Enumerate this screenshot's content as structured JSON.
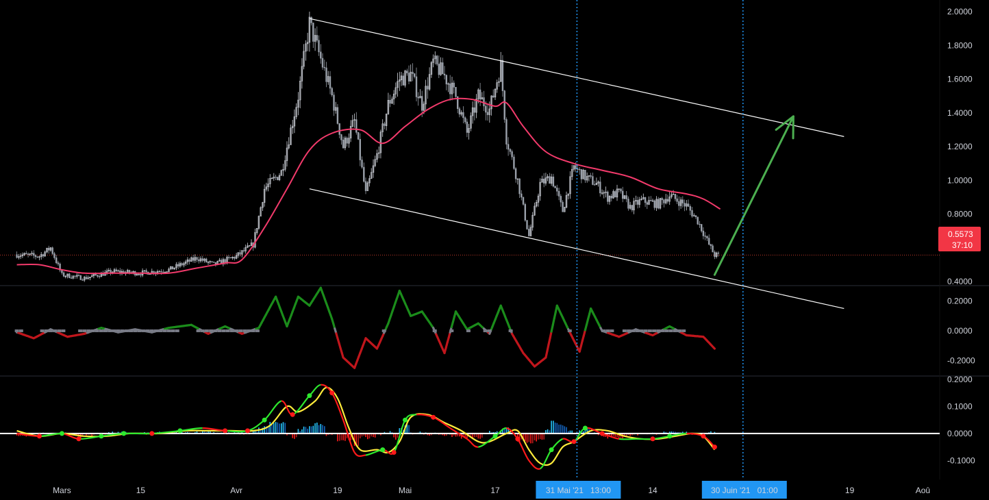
{
  "chart_data": [
    {
      "type": "candlestick",
      "panel": "price",
      "y_axis": {
        "ticks": [
          "2.0000",
          "1.8000",
          "1.6000",
          "1.4000",
          "1.2000",
          "1.0000",
          "0.8000",
          "0.6000",
          "0.4000"
        ],
        "tick_values": [
          2.0,
          1.8,
          1.6,
          1.4,
          1.2,
          1.0,
          0.8,
          0.6,
          0.4
        ],
        "ylim": [
          0.38,
          2.07
        ]
      },
      "last_price": {
        "value": 0.5573,
        "label": "0.5573",
        "countdown": "37:10",
        "color": "#f23645"
      },
      "moving_average": {
        "color": "#f23a6b",
        "points": [
          [
            "2021-02-21",
            0.5
          ],
          [
            "2021-02-25",
            0.5
          ],
          [
            "2021-03-01",
            0.47
          ],
          [
            "2021-03-05",
            0.45
          ],
          [
            "2021-03-10",
            0.45
          ],
          [
            "2021-03-15",
            0.45
          ],
          [
            "2021-03-20",
            0.45
          ],
          [
            "2021-03-25",
            0.48
          ],
          [
            "2021-03-30",
            0.51
          ],
          [
            "2021-04-02",
            0.53
          ],
          [
            "2021-04-06",
            0.72
          ],
          [
            "2021-04-10",
            0.95
          ],
          [
            "2021-04-14",
            1.18
          ],
          [
            "2021-04-18",
            1.28
          ],
          [
            "2021-04-23",
            1.3
          ],
          [
            "2021-04-27",
            1.22
          ],
          [
            "2021-05-01",
            1.32
          ],
          [
            "2021-05-05",
            1.42
          ],
          [
            "2021-05-09",
            1.48
          ],
          [
            "2021-05-13",
            1.48
          ],
          [
            "2021-05-17",
            1.44
          ],
          [
            "2021-05-19",
            1.46
          ],
          [
            "2021-05-22",
            1.32
          ],
          [
            "2021-05-26",
            1.17
          ],
          [
            "2021-05-31",
            1.1
          ],
          [
            "2021-06-05",
            1.06
          ],
          [
            "2021-06-10",
            1.02
          ],
          [
            "2021-06-15",
            0.95
          ],
          [
            "2021-06-20",
            0.92
          ],
          [
            "2021-06-23",
            0.89
          ],
          [
            "2021-06-26",
            0.83
          ]
        ]
      },
      "price_path": [
        [
          "2021-02-21",
          0.56
        ],
        [
          "2021-02-25",
          0.55
        ],
        [
          "2021-02-27",
          0.6
        ],
        [
          "2021-03-01",
          0.44
        ],
        [
          "2021-03-05",
          0.42
        ],
        [
          "2021-03-10",
          0.46
        ],
        [
          "2021-03-15",
          0.45
        ],
        [
          "2021-03-20",
          0.47
        ],
        [
          "2021-03-25",
          0.54
        ],
        [
          "2021-03-28",
          0.5
        ],
        [
          "2021-04-01",
          0.55
        ],
        [
          "2021-04-04",
          0.62
        ],
        [
          "2021-04-06",
          0.95
        ],
        [
          "2021-04-09",
          1.05
        ],
        [
          "2021-04-12",
          1.5
        ],
        [
          "2021-04-14",
          1.93
        ],
        [
          "2021-04-16",
          1.72
        ],
        [
          "2021-04-18",
          1.5
        ],
        [
          "2021-04-20",
          1.2
        ],
        [
          "2021-04-22",
          1.35
        ],
        [
          "2021-04-24",
          0.92
        ],
        [
          "2021-04-26",
          1.15
        ],
        [
          "2021-04-28",
          1.45
        ],
        [
          "2021-04-30",
          1.6
        ],
        [
          "2021-05-02",
          1.63
        ],
        [
          "2021-05-04",
          1.45
        ],
        [
          "2021-05-06",
          1.7
        ],
        [
          "2021-05-08",
          1.62
        ],
        [
          "2021-05-10",
          1.5
        ],
        [
          "2021-05-12",
          1.28
        ],
        [
          "2021-05-14",
          1.5
        ],
        [
          "2021-05-16",
          1.42
        ],
        [
          "2021-05-18",
          1.68
        ],
        [
          "2021-05-19",
          1.25
        ],
        [
          "2021-05-21",
          1.0
        ],
        [
          "2021-05-23",
          0.67
        ],
        [
          "2021-05-25",
          0.98
        ],
        [
          "2021-05-27",
          1.02
        ],
        [
          "2021-05-29",
          0.82
        ],
        [
          "2021-05-31",
          1.08
        ],
        [
          "2021-06-02",
          1.02
        ],
        [
          "2021-06-04",
          0.98
        ],
        [
          "2021-06-06",
          0.9
        ],
        [
          "2021-06-08",
          0.93
        ],
        [
          "2021-06-10",
          0.84
        ],
        [
          "2021-06-12",
          0.88
        ],
        [
          "2021-06-15",
          0.86
        ],
        [
          "2021-06-17",
          0.91
        ],
        [
          "2021-06-20",
          0.85
        ],
        [
          "2021-06-22",
          0.76
        ],
        [
          "2021-06-24",
          0.62
        ],
        [
          "2021-06-25",
          0.5573
        ]
      ],
      "channel": {
        "color": "#ffffff",
        "upper": [
          [
            "2021-04-14",
            1.96
          ],
          [
            "2021-07-18",
            1.26
          ]
        ],
        "lower": [
          [
            "2021-04-14",
            0.95
          ],
          [
            "2021-07-18",
            0.24
          ]
        ]
      },
      "arrow": {
        "color": "#4caf50",
        "from": [
          "2021-06-25",
          0.44
        ],
        "to": [
          "2021-07-09",
          1.38
        ]
      },
      "vertical_markers": [
        {
          "date": "2021-05-31 13:00",
          "label": "31 Mai '21   13:00"
        },
        {
          "date": "2021-06-30 01:00",
          "label": "30 Juin '21   01:00"
        }
      ]
    },
    {
      "type": "line",
      "panel": "oscillator",
      "y_axis": {
        "ticks": [
          "0.2000",
          "0.0000",
          "-0.2000"
        ],
        "tick_values": [
          0.2,
          0.0,
          -0.2
        ],
        "ylim": [
          -0.3,
          0.3
        ]
      },
      "series": [
        {
          "colors": {
            "positive": "#1b8c1b",
            "negative": "#c0161c",
            "zero_marker": "#787b86"
          },
          "points": [
            [
              "2021-02-21",
              -0.01
            ],
            [
              "2021-02-24",
              -0.05
            ],
            [
              "2021-02-27",
              0.01
            ],
            [
              "2021-03-02",
              -0.04
            ],
            [
              "2021-03-05",
              -0.02
            ],
            [
              "2021-03-08",
              0.02
            ],
            [
              "2021-03-11",
              -0.01
            ],
            [
              "2021-03-14",
              0.01
            ],
            [
              "2021-03-17",
              -0.01
            ],
            [
              "2021-03-20",
              0.02
            ],
            [
              "2021-03-24",
              0.04
            ],
            [
              "2021-03-27",
              -0.02
            ],
            [
              "2021-03-30",
              0.03
            ],
            [
              "2021-04-02",
              -0.02
            ],
            [
              "2021-04-05",
              0.02
            ],
            [
              "2021-04-08",
              0.23
            ],
            [
              "2021-04-10",
              0.03
            ],
            [
              "2021-04-12",
              0.23
            ],
            [
              "2021-04-14",
              0.17
            ],
            [
              "2021-04-16",
              0.29
            ],
            [
              "2021-04-18",
              0.08
            ],
            [
              "2021-04-20",
              -0.18
            ],
            [
              "2021-04-22",
              -0.25
            ],
            [
              "2021-04-24",
              -0.05
            ],
            [
              "2021-04-26",
              -0.12
            ],
            [
              "2021-04-28",
              0.05
            ],
            [
              "2021-04-30",
              0.27
            ],
            [
              "2021-05-02",
              0.1
            ],
            [
              "2021-05-04",
              0.13
            ],
            [
              "2021-05-06",
              0.02
            ],
            [
              "2021-05-08",
              -0.15
            ],
            [
              "2021-05-10",
              0.13
            ],
            [
              "2021-05-12",
              0.01
            ],
            [
              "2021-05-14",
              0.05
            ],
            [
              "2021-05-16",
              -0.02
            ],
            [
              "2021-05-18",
              0.17
            ],
            [
              "2021-05-20",
              -0.02
            ],
            [
              "2021-05-22",
              -0.15
            ],
            [
              "2021-05-24",
              -0.24
            ],
            [
              "2021-05-26",
              -0.18
            ],
            [
              "2021-05-28",
              0.17
            ],
            [
              "2021-05-30",
              0.01
            ],
            [
              "2021-06-01",
              -0.14
            ],
            [
              "2021-06-03",
              0.15
            ],
            [
              "2021-06-05",
              0.0
            ],
            [
              "2021-06-08",
              -0.04
            ],
            [
              "2021-06-11",
              0.01
            ],
            [
              "2021-06-14",
              -0.03
            ],
            [
              "2021-06-17",
              0.03
            ],
            [
              "2021-06-20",
              -0.03
            ],
            [
              "2021-06-23",
              -0.04
            ],
            [
              "2021-06-25",
              -0.12
            ]
          ]
        }
      ]
    },
    {
      "type": "line",
      "panel": "macd",
      "y_axis": {
        "ticks": [
          "0.2000",
          "0.1000",
          "0.0000",
          "-0.1000"
        ],
        "tick_values": [
          0.2,
          0.1,
          0.0,
          -0.1
        ],
        "ylim": [
          -0.17,
          0.21
        ]
      },
      "zero_line_color": "#ffffff",
      "series": [
        {
          "colors": {
            "rising": "#2ee82e",
            "falling": "#ff1a1a"
          },
          "points": [
            [
              "2021-02-21",
              0.0
            ],
            [
              "2021-02-25",
              -0.01
            ],
            [
              "2021-03-01",
              0.0
            ],
            [
              "2021-03-04",
              -0.02
            ],
            [
              "2021-03-08",
              -0.01
            ],
            [
              "2021-03-12",
              0.0
            ],
            [
              "2021-03-17",
              0.0
            ],
            [
              "2021-03-22",
              0.01
            ],
            [
              "2021-03-26",
              0.02
            ],
            [
              "2021-03-30",
              0.01
            ],
            [
              "2021-04-03",
              0.01
            ],
            [
              "2021-04-06",
              0.05
            ],
            [
              "2021-04-09",
              0.12
            ],
            [
              "2021-04-11",
              0.07
            ],
            [
              "2021-04-14",
              0.14
            ],
            [
              "2021-04-16",
              0.18
            ],
            [
              "2021-04-18",
              0.15
            ],
            [
              "2021-04-20",
              0.05
            ],
            [
              "2021-04-22",
              -0.07
            ],
            [
              "2021-04-24",
              -0.08
            ],
            [
              "2021-04-27",
              -0.06
            ],
            [
              "2021-04-29",
              -0.07
            ],
            [
              "2021-05-01",
              0.05
            ],
            [
              "2021-05-03",
              0.07
            ],
            [
              "2021-05-06",
              0.06
            ],
            [
              "2021-05-09",
              0.02
            ],
            [
              "2021-05-12",
              -0.02
            ],
            [
              "2021-05-14",
              -0.05
            ],
            [
              "2021-05-17",
              -0.01
            ],
            [
              "2021-05-19",
              0.02
            ],
            [
              "2021-05-21",
              -0.02
            ],
            [
              "2021-05-23",
              -0.1
            ],
            [
              "2021-05-25",
              -0.13
            ],
            [
              "2021-05-27",
              -0.06
            ],
            [
              "2021-05-29",
              -0.02
            ],
            [
              "2021-05-31",
              -0.03
            ],
            [
              "2021-06-02",
              0.02
            ],
            [
              "2021-06-05",
              0.0
            ],
            [
              "2021-06-08",
              -0.02
            ],
            [
              "2021-06-11",
              -0.02
            ],
            [
              "2021-06-14",
              -0.02
            ],
            [
              "2021-06-17",
              -0.01
            ],
            [
              "2021-06-20",
              0.0
            ],
            [
              "2021-06-23",
              -0.01
            ],
            [
              "2021-06-25",
              -0.05
            ]
          ]
        },
        {
          "colors": {
            "line": "#ffeb3b"
          },
          "points": [
            [
              "2021-02-21",
              0.01
            ],
            [
              "2021-02-25",
              -0.01
            ],
            [
              "2021-03-01",
              0.0
            ],
            [
              "2021-03-05",
              -0.01
            ],
            [
              "2021-03-09",
              -0.01
            ],
            [
              "2021-03-13",
              0.0
            ],
            [
              "2021-03-18",
              0.0
            ],
            [
              "2021-03-23",
              0.01
            ],
            [
              "2021-03-27",
              0.01
            ],
            [
              "2021-03-31",
              0.01
            ],
            [
              "2021-04-04",
              0.01
            ],
            [
              "2021-04-07",
              0.03
            ],
            [
              "2021-04-10",
              0.1
            ],
            [
              "2021-04-12",
              0.08
            ],
            [
              "2021-04-15",
              0.12
            ],
            [
              "2021-04-17",
              0.17
            ],
            [
              "2021-04-19",
              0.13
            ],
            [
              "2021-04-21",
              0.02
            ],
            [
              "2021-04-23",
              -0.06
            ],
            [
              "2021-04-26",
              -0.06
            ],
            [
              "2021-04-28",
              -0.07
            ],
            [
              "2021-04-30",
              -0.03
            ],
            [
              "2021-05-02",
              0.06
            ],
            [
              "2021-05-05",
              0.07
            ],
            [
              "2021-05-08",
              0.04
            ],
            [
              "2021-05-11",
              0.01
            ],
            [
              "2021-05-14",
              -0.03
            ],
            [
              "2021-05-16",
              -0.03
            ],
            [
              "2021-05-19",
              0.0
            ],
            [
              "2021-05-21",
              0.01
            ],
            [
              "2021-05-23",
              -0.06
            ],
            [
              "2021-05-25",
              -0.11
            ],
            [
              "2021-05-27",
              -0.11
            ],
            [
              "2021-05-29",
              -0.05
            ],
            [
              "2021-05-31",
              -0.03
            ],
            [
              "2021-06-03",
              0.01
            ],
            [
              "2021-06-06",
              0.01
            ],
            [
              "2021-06-09",
              -0.01
            ],
            [
              "2021-06-12",
              -0.02
            ],
            [
              "2021-06-15",
              -0.02
            ],
            [
              "2021-06-18",
              -0.01
            ],
            [
              "2021-06-21",
              0.0
            ],
            [
              "2021-06-23",
              -0.01
            ],
            [
              "2021-06-25",
              -0.06
            ]
          ]
        }
      ]
    }
  ],
  "x_axis": {
    "ticks": [
      {
        "date": "2021-03-01",
        "label": "Mars"
      },
      {
        "date": "2021-03-15",
        "label": "15"
      },
      {
        "date": "2021-04-01",
        "label": "Avr"
      },
      {
        "date": "2021-04-19",
        "label": "19"
      },
      {
        "date": "2021-05-01",
        "label": "Mai"
      },
      {
        "date": "2021-05-17",
        "label": "17"
      },
      {
        "date": "2021-06-14",
        "label": "14"
      },
      {
        "date": "2021-07-19",
        "label": "19"
      },
      {
        "date": "2021-08-01",
        "label": "Aoû"
      }
    ],
    "range": [
      "2021-02-18",
      "2021-08-04"
    ]
  },
  "colors": {
    "background": "#000000",
    "text": "#d1d4dc",
    "marker_line": "#2196f3",
    "marker_label_bg": "#2196f3",
    "separator": "#2a2e39"
  }
}
